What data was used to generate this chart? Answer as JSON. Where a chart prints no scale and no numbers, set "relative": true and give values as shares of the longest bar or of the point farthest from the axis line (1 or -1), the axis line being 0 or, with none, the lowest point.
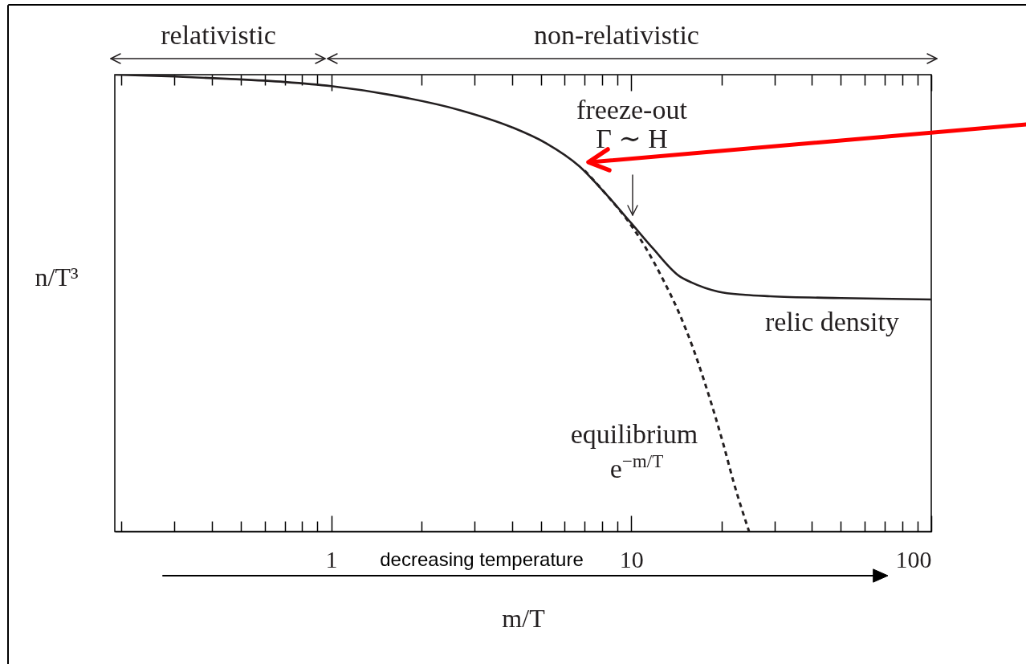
{
  "chart_data": {
    "type": "line",
    "xlabel": "m/T",
    "ylabel": "n/T³",
    "annotations": [
      "relativistic",
      "non-relativistic",
      "freeze-out",
      "Γ ∼ H",
      "e$^{−m/T}$",
      "decreasing temperature"
    ],
    "relative": true,
    "log": "x",
    "grid": false,
    "line_style": "solid",
    "xlim": [
      0.19,
      100
    ],
    "xticks": [
      {
        "value": 0.2,
        "label": null
      },
      {
        "value": 0.3,
        "label": null
      },
      {
        "value": 0.4,
        "label": null
      },
      {
        "value": 0.5,
        "label": null
      },
      {
        "value": 0.6,
        "label": null
      },
      {
        "value": 0.7,
        "label": null
      },
      {
        "value": 0.8,
        "label": null
      },
      {
        "value": 0.9,
        "label": null
      },
      1,
      {
        "value": 2,
        "label": null
      },
      {
        "value": 3,
        "label": null
      },
      {
        "value": 4,
        "label": null
      },
      {
        "value": 5,
        "label": null
      },
      {
        "value": 6,
        "label": null
      },
      {
        "value": 7,
        "label": null
      },
      {
        "value": 8,
        "label": null
      },
      {
        "value": 9,
        "label": null
      },
      10,
      {
        "value": 20,
        "label": null
      },
      {
        "value": 30,
        "label": null
      },
      {
        "value": 40,
        "label": null
      },
      {
        "value": 50,
        "label": null
      },
      {
        "value": 60,
        "label": null
      },
      {
        "value": 70,
        "label": null
      },
      {
        "value": 80,
        "label": null
      },
      {
        "value": 90,
        "label": null
      },
      100
    ],
    "series": [
      {
        "name": "relic density",
        "color": "#231f20",
        "x": [
          0.19,
          0.3,
          0.45,
          0.7,
          1,
          1.6,
          2.7,
          4,
          5.2,
          6.7,
          8.2,
          10,
          11.8,
          14.4,
          15.9,
          19.5,
          24,
          29,
          50,
          100
        ],
        "values": [
          1,
          0.996,
          0.991,
          0.984,
          0.975,
          0.955,
          0.922,
          0.885,
          0.85,
          0.8,
          0.74,
          0.675,
          0.62,
          0.56,
          0.545,
          0.525,
          0.518,
          0.515,
          0.511,
          0.508
        ]
      },
      {
        "name": "equilibrium",
        "color": "#231f20",
        "line_style": "dashed",
        "x": [
          7,
          8.2,
          10,
          11.2,
          12.8,
          14.4,
          16.1,
          17.5,
          18.9,
          20.3,
          21.9,
          24.7
        ],
        "values": [
          0.79,
          0.74,
          0.67,
          0.62,
          0.55,
          0.48,
          0.4,
          0.33,
          0.26,
          0.19,
          0.11,
          0
        ]
      }
    ]
  }
}
